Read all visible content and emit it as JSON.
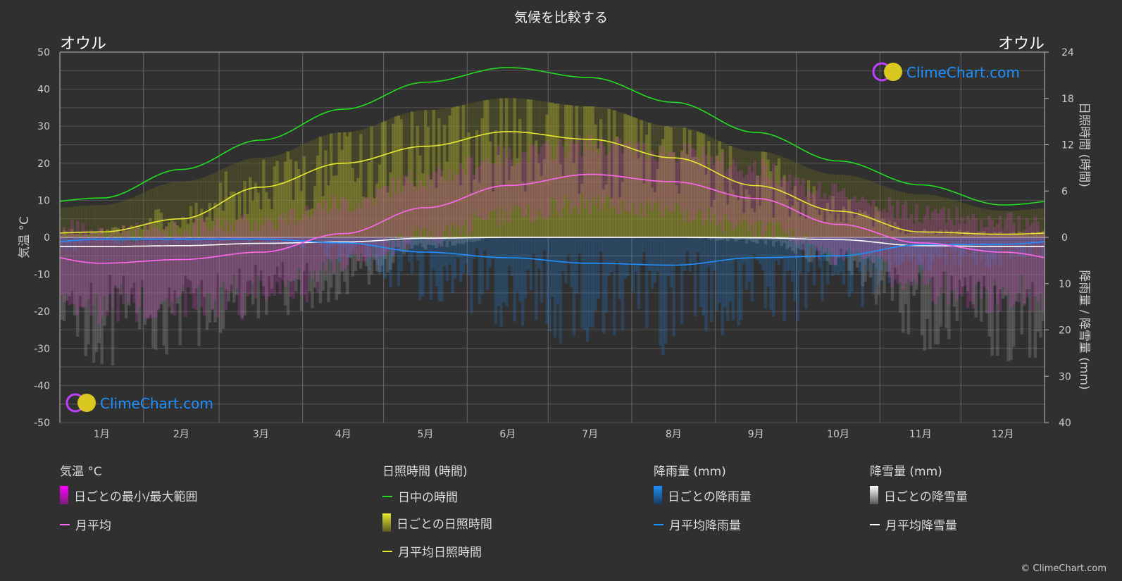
{
  "title": "気候を比較する",
  "city_left": "オウル",
  "city_right": "オウル",
  "logo_text": "ClimeChart.com",
  "copyright": "© ClimeChart.com",
  "colors": {
    "daylight": "#22dd22",
    "sunshine": "#e8e830",
    "temp": "#ff66ee",
    "rain": "#1e90ff",
    "snow": "#ffffff",
    "bg": "#303030"
  },
  "chart_data": {
    "type": "line",
    "categories": [
      "1月",
      "2月",
      "3月",
      "4月",
      "5月",
      "6月",
      "7月",
      "8月",
      "9月",
      "10月",
      "11月",
      "12月"
    ],
    "left_axis": {
      "label": "気温 °C",
      "range": [
        -50,
        50
      ],
      "ticks": [
        50,
        40,
        30,
        20,
        10,
        0,
        -10,
        -20,
        -30,
        -40,
        -50
      ]
    },
    "right_axis_top": {
      "label": "日照時間 (時間)",
      "range": [
        0,
        24
      ],
      "ticks": [
        24,
        18,
        12,
        6,
        0
      ]
    },
    "right_axis_bottom": {
      "label": "降雨量 / 降雪量 (mm)",
      "range": [
        0,
        40
      ],
      "ticks": [
        10,
        20,
        30,
        40
      ]
    },
    "grid": true,
    "series": [
      {
        "name": "日中の時間",
        "axis": "hours",
        "values": [
          5.1,
          8.8,
          12.6,
          16.6,
          20.1,
          22.0,
          20.7,
          17.5,
          13.6,
          9.9,
          6.8,
          4.2
        ]
      },
      {
        "name": "月平均日照時間",
        "axis": "hours",
        "values": [
          0.7,
          2.4,
          6.5,
          9.6,
          11.8,
          13.7,
          12.7,
          10.3,
          6.7,
          3.4,
          0.7,
          0.4
        ]
      },
      {
        "name": "月平均",
        "axis": "temperature",
        "values": [
          -7,
          -6,
          -4,
          1,
          8,
          14,
          17,
          15,
          10.5,
          3.5,
          -1.5,
          -4
        ]
      },
      {
        "name": "月平均降雨量",
        "axis": "mm",
        "values": [
          0.4,
          0.4,
          0.4,
          1.2,
          3.2,
          4.4,
          5.6,
          6.0,
          4.4,
          4.0,
          1.6,
          1.5
        ]
      },
      {
        "name": "月平均降雪量",
        "axis": "mm",
        "values": [
          2.0,
          1.8,
          1.3,
          1.0,
          0.2,
          0,
          0,
          0,
          0.1,
          0.5,
          1.8,
          2.0
        ]
      }
    ]
  },
  "legend": {
    "temp": {
      "header": "気温 °C",
      "items": [
        "日ごとの最小/最大範囲",
        "月平均"
      ]
    },
    "sun": {
      "header": "日照時間 (時間)",
      "items": [
        "日中の時間",
        "日ごとの日照時間",
        "月平均日照時間"
      ]
    },
    "rain": {
      "header": "降雨量 (mm)",
      "items": [
        "日ごとの降雨量",
        "月平均降雨量"
      ]
    },
    "snow": {
      "header": "降雪量 (mm)",
      "items": [
        "日ごとの降雪量",
        "月平均降雪量"
      ]
    }
  }
}
